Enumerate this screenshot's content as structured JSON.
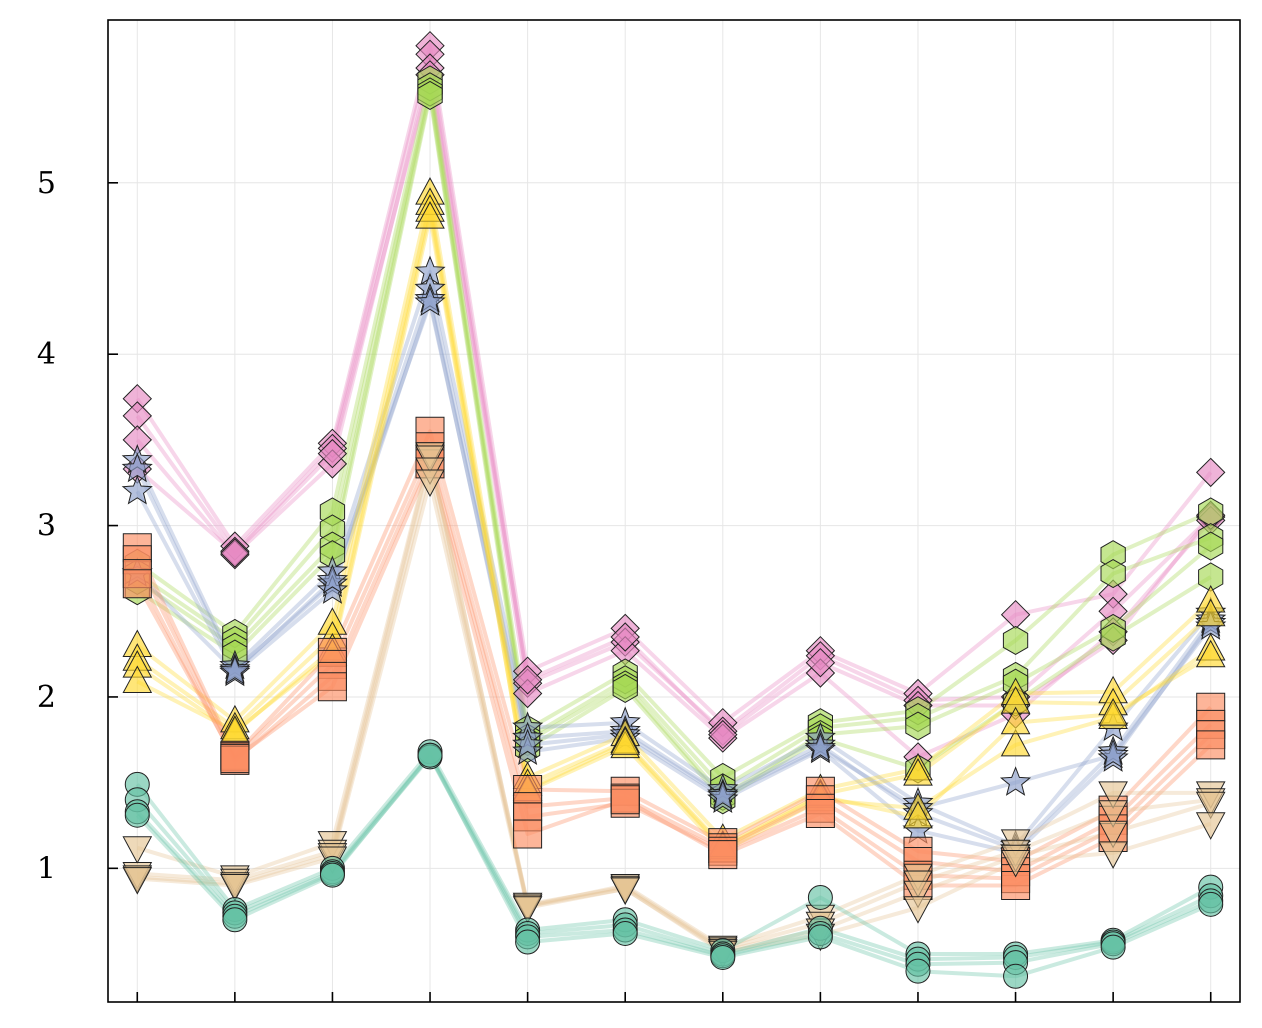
{
  "chart_data": {
    "type": "line",
    "title": "",
    "xlabel": "",
    "ylabel": "",
    "x": [
      1,
      2,
      3,
      4,
      5,
      6,
      7,
      8,
      9,
      10,
      11,
      12
    ],
    "xlim": [
      0.7,
      12.3
    ],
    "ylim": [
      0.22,
      5.95
    ],
    "y_ticks": [
      1,
      2,
      3,
      4,
      5
    ],
    "y_tick_labels": [
      "1",
      "2",
      "3",
      "4",
      "5"
    ],
    "grid": true,
    "legend": "none",
    "colors": {
      "pink": "#e78ac3",
      "green": "#a6d854",
      "blue": "#8da0cb",
      "yellow": "#ffd92f",
      "orange": "#fc8d62",
      "tan": "#e5c494",
      "teal": "#66c2a5"
    },
    "series": [
      {
        "group": "diamond",
        "color": "#e78ac3",
        "marker": "diamond",
        "values": [
          3.74,
          2.88,
          3.48,
          5.8,
          2.15,
          2.4,
          1.85,
          2.27,
          2.02,
          2.48,
          2.6,
          3.31
        ]
      },
      {
        "group": "diamond",
        "color": "#e78ac3",
        "marker": "diamond",
        "values": [
          3.64,
          2.85,
          3.45,
          5.75,
          2.08,
          2.32,
          1.8,
          2.24,
          1.98,
          2.0,
          2.5,
          3.05
        ]
      },
      {
        "group": "diamond",
        "color": "#e78ac3",
        "marker": "diamond",
        "values": [
          3.5,
          2.83,
          3.36,
          5.67,
          2.02,
          2.27,
          1.76,
          2.14,
          1.65,
          1.9,
          2.38,
          3.03
        ]
      },
      {
        "group": "diamond",
        "color": "#e78ac3",
        "marker": "diamond",
        "values": [
          3.33,
          2.84,
          3.42,
          5.63,
          2.1,
          2.35,
          1.78,
          2.2,
          1.95,
          1.95,
          2.33,
          3.06
        ]
      },
      {
        "group": "hexagon",
        "color": "#a6d854",
        "marker": "hexagon",
        "values": [
          2.78,
          2.37,
          3.08,
          5.6,
          1.81,
          2.14,
          1.53,
          1.85,
          1.92,
          2.33,
          2.83,
          3.08
        ]
      },
      {
        "group": "hexagon",
        "color": "#a6d854",
        "marker": "hexagon",
        "values": [
          2.72,
          2.33,
          2.98,
          5.56,
          1.76,
          2.1,
          1.47,
          1.82,
          1.88,
          2.12,
          2.72,
          2.93
        ]
      },
      {
        "group": "hexagon",
        "color": "#a6d854",
        "marker": "hexagon",
        "values": [
          2.68,
          2.29,
          2.88,
          5.53,
          1.74,
          2.07,
          1.42,
          1.78,
          1.83,
          2.08,
          2.4,
          2.88
        ]
      },
      {
        "group": "hexagon",
        "color": "#a6d854",
        "marker": "hexagon",
        "values": [
          2.62,
          2.25,
          2.83,
          5.51,
          1.7,
          2.05,
          1.4,
          1.76,
          1.58,
          1.97,
          2.35,
          2.7
        ]
      },
      {
        "group": "star",
        "color": "#8da0cb",
        "marker": "star",
        "values": [
          3.38,
          2.18,
          2.73,
          4.48,
          1.82,
          1.85,
          1.46,
          1.76,
          1.38,
          1.13,
          1.82,
          2.49
        ]
      },
      {
        "group": "star",
        "color": "#8da0cb",
        "marker": "star",
        "values": [
          3.33,
          2.16,
          2.66,
          4.38,
          1.76,
          1.8,
          1.43,
          1.72,
          1.32,
          1.11,
          1.68,
          2.45
        ]
      },
      {
        "group": "star",
        "color": "#8da0cb",
        "marker": "star",
        "values": [
          3.2,
          2.14,
          2.62,
          4.32,
          1.68,
          1.76,
          1.4,
          1.69,
          1.22,
          1.09,
          1.64,
          2.43
        ]
      },
      {
        "group": "star",
        "color": "#8da0cb",
        "marker": "star",
        "values": [
          2.72,
          2.15,
          2.68,
          4.3,
          1.72,
          1.78,
          1.42,
          1.7,
          1.35,
          1.5,
          1.66,
          2.41
        ]
      },
      {
        "group": "triangle-up",
        "color": "#ffd92f",
        "marker": "triangle-up",
        "values": [
          2.3,
          1.86,
          2.43,
          4.94,
          1.53,
          1.78,
          1.17,
          1.46,
          1.58,
          2.02,
          2.03,
          2.56
        ]
      },
      {
        "group": "triangle-up",
        "color": "#ffd92f",
        "marker": "triangle-up",
        "values": [
          2.22,
          1.82,
          2.35,
          4.88,
          1.49,
          1.74,
          1.13,
          1.43,
          1.55,
          1.97,
          1.96,
          2.48
        ]
      },
      {
        "group": "triangle-up",
        "color": "#ffd92f",
        "marker": "triangle-up",
        "values": [
          2.18,
          1.79,
          2.28,
          4.84,
          1.45,
          1.71,
          1.1,
          1.4,
          1.35,
          1.72,
          1.88,
          2.28
        ]
      },
      {
        "group": "triangle-up",
        "color": "#ffd92f",
        "marker": "triangle-up",
        "values": [
          2.09,
          1.8,
          2.25,
          4.8,
          1.46,
          1.73,
          1.12,
          1.42,
          1.3,
          1.85,
          1.9,
          2.24
        ]
      },
      {
        "group": "square",
        "color": "#fc8d62",
        "marker": "square",
        "values": [
          2.87,
          1.66,
          2.26,
          3.55,
          1.46,
          1.45,
          1.15,
          1.45,
          1.1,
          1.04,
          1.34,
          1.94
        ]
      },
      {
        "group": "square",
        "color": "#fc8d62",
        "marker": "square",
        "values": [
          2.8,
          1.65,
          2.19,
          3.46,
          1.36,
          1.41,
          1.12,
          1.4,
          1.04,
          0.98,
          1.28,
          1.84
        ]
      },
      {
        "group": "square",
        "color": "#fc8d62",
        "marker": "square",
        "values": [
          2.72,
          1.63,
          2.12,
          3.4,
          1.3,
          1.38,
          1.1,
          1.35,
          0.96,
          0.94,
          1.23,
          1.78
        ]
      },
      {
        "group": "square",
        "color": "#fc8d62",
        "marker": "square",
        "values": [
          2.66,
          1.64,
          2.06,
          3.36,
          1.2,
          1.4,
          1.08,
          1.32,
          0.9,
          0.9,
          1.18,
          1.72
        ]
      },
      {
        "group": "triangle-down",
        "color": "#e5c494",
        "marker": "triangle-down",
        "values": [
          1.12,
          0.95,
          1.15,
          3.42,
          0.78,
          0.9,
          0.54,
          0.72,
          0.96,
          1.16,
          1.44,
          1.44
        ]
      },
      {
        "group": "triangle-down",
        "color": "#e5c494",
        "marker": "triangle-down",
        "values": [
          0.97,
          0.93,
          1.1,
          3.4,
          0.79,
          0.89,
          0.53,
          0.68,
          0.92,
          1.1,
          1.33,
          1.4
        ]
      },
      {
        "group": "triangle-down",
        "color": "#e5c494",
        "marker": "triangle-down",
        "values": [
          0.95,
          0.91,
          1.08,
          3.33,
          0.78,
          0.88,
          0.52,
          0.64,
          0.86,
          1.07,
          1.21,
          1.38
        ]
      },
      {
        "group": "triangle-down",
        "color": "#e5c494",
        "marker": "triangle-down",
        "values": [
          0.94,
          0.9,
          1.06,
          3.26,
          0.77,
          0.88,
          0.51,
          0.61,
          0.77,
          1.04,
          1.09,
          1.26
        ]
      },
      {
        "group": "circle",
        "color": "#66c2a5",
        "marker": "circle",
        "values": [
          1.49,
          0.76,
          1.0,
          1.68,
          0.64,
          0.7,
          0.52,
          0.83,
          0.5,
          0.5,
          0.58,
          0.89
        ]
      },
      {
        "group": "circle",
        "color": "#66c2a5",
        "marker": "circle",
        "values": [
          1.4,
          0.74,
          0.98,
          1.66,
          0.62,
          0.67,
          0.5,
          0.65,
          0.47,
          0.48,
          0.57,
          0.84
        ]
      },
      {
        "group": "circle",
        "color": "#66c2a5",
        "marker": "circle",
        "values": [
          1.33,
          0.72,
          0.97,
          1.65,
          0.6,
          0.64,
          0.49,
          0.62,
          0.44,
          0.45,
          0.56,
          0.81
        ]
      },
      {
        "group": "circle",
        "color": "#66c2a5",
        "marker": "circle",
        "values": [
          1.31,
          0.7,
          0.96,
          1.66,
          0.57,
          0.62,
          0.48,
          0.6,
          0.4,
          0.37,
          0.54,
          0.79
        ]
      }
    ]
  }
}
